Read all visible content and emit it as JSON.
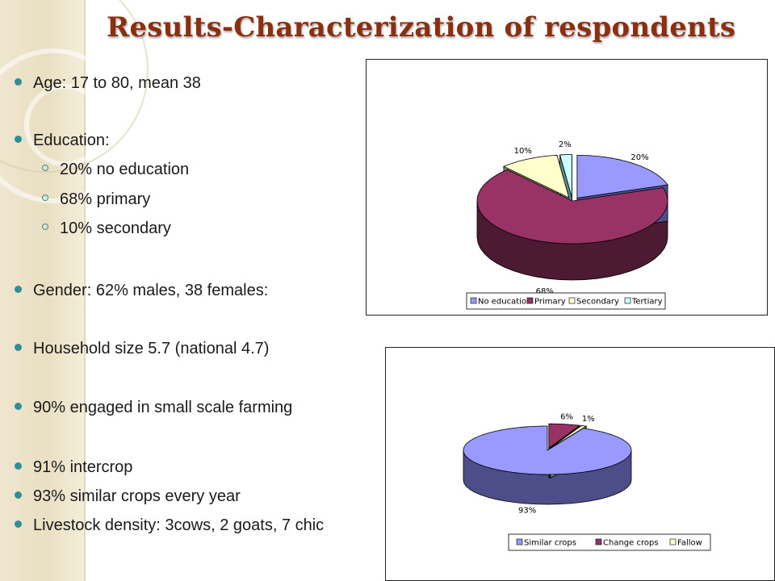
{
  "title": "Results-Characterization of respondents",
  "bullets": {
    "age": "Age: 17 to 80, mean 38",
    "education": "Education:",
    "education_items": [
      "20% no education",
      "68% primary",
      "10% secondary"
    ],
    "gender": "Gender: 62% males, 38 females:",
    "household": "Household size 5.7 (national 4.7)",
    "farming": "90% engaged in small scale farming",
    "intercrop": "91% intercrop",
    "similar": "93% similar crops every year",
    "livestock": "Livestock density: 3cows, 2 goats, 7 chic"
  },
  "colors": {
    "title": "#8b2f10",
    "bullet": "#2d8f9a",
    "slices": [
      "#9999ff",
      "#993366",
      "#ffffcc",
      "#ccffff"
    ],
    "slice_sides": [
      "#4d4d8a",
      "#4d1a33",
      "#8a8a66",
      "#5a8a8a"
    ]
  },
  "chart_data": [
    {
      "type": "pie",
      "title": "",
      "categories": [
        "No education",
        "Primary",
        "Secondary",
        "Tertiary"
      ],
      "values": [
        20,
        68,
        10,
        2
      ],
      "labels": [
        "20%",
        "68%",
        "10%",
        "2%"
      ],
      "exploded": [
        true,
        false,
        true,
        true
      ],
      "style": "3d",
      "legend": "bottom-right"
    },
    {
      "type": "pie",
      "title": "",
      "categories": [
        "Similar crops",
        "Change crops",
        "Fallow"
      ],
      "values": [
        93,
        6,
        1
      ],
      "labels": [
        "93%",
        "6%",
        "1%"
      ],
      "exploded": [
        false,
        true,
        true
      ],
      "style": "3d",
      "legend": "bottom"
    }
  ]
}
